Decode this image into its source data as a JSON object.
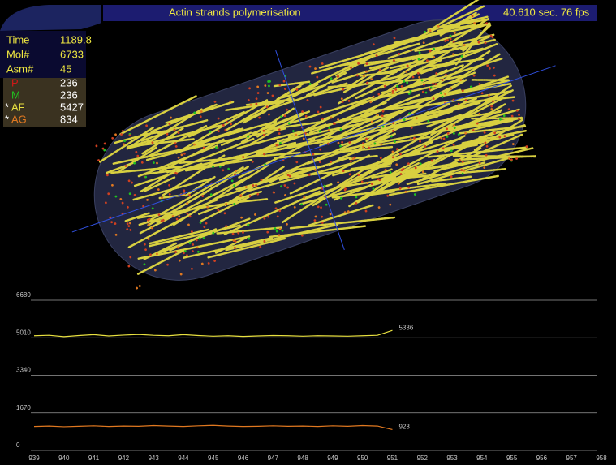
{
  "header": {
    "title": "Actin strands polymerisation",
    "status": "40.610 sec. 76 fps"
  },
  "stats": [
    {
      "label": "Time",
      "value": 1189.8
    },
    {
      "label": "Mol#",
      "value": 6733
    },
    {
      "label": "Asm#",
      "value": 45
    }
  ],
  "species": [
    {
      "label": "P",
      "color": "#d01818",
      "value": 236
    },
    {
      "label": "M",
      "color": "#20c020",
      "value": 236
    },
    {
      "prefix": "*",
      "label": "AF",
      "color": "#e8e040",
      "value": 5427
    },
    {
      "prefix": "*",
      "label": "AG",
      "color": "#e07820",
      "value": 834
    }
  ],
  "chart_data": {
    "type": "line",
    "x": [
      939,
      939.5,
      940,
      940.5,
      941,
      941.5,
      942,
      942.5,
      943,
      943.5,
      944,
      944.5,
      945,
      945.5,
      946,
      946.5,
      947,
      947.5,
      948,
      948.5,
      949,
      949.5,
      950,
      950.5,
      951
    ],
    "series": [
      {
        "color": "#e8e040",
        "values": [
          5100,
          5120,
          5060,
          5110,
          5150,
          5090,
          5130,
          5160,
          5120,
          5100,
          5150,
          5110,
          5080,
          5100,
          5070,
          5090,
          5110,
          5100,
          5080,
          5100,
          5090,
          5080,
          5100,
          5120,
          5336
        ]
      },
      {
        "color": "#e07820",
        "values": [
          1060,
          1080,
          1050,
          1070,
          1090,
          1060,
          1080,
          1070,
          1100,
          1080,
          1060,
          1090,
          1110,
          1080,
          1060,
          1070,
          1090,
          1070,
          1080,
          1060,
          1090,
          1070,
          1100,
          1080,
          923
        ]
      }
    ],
    "xlim": [
      939,
      958
    ],
    "ylim": [
      0,
      6680
    ],
    "xticks": [
      939,
      940,
      941,
      942,
      943,
      944,
      945,
      946,
      947,
      948,
      949,
      950,
      951,
      952,
      953,
      954,
      955,
      956,
      957,
      958
    ],
    "yticks": [
      0,
      1670,
      3340,
      5010,
      6680
    ],
    "grid": true
  }
}
